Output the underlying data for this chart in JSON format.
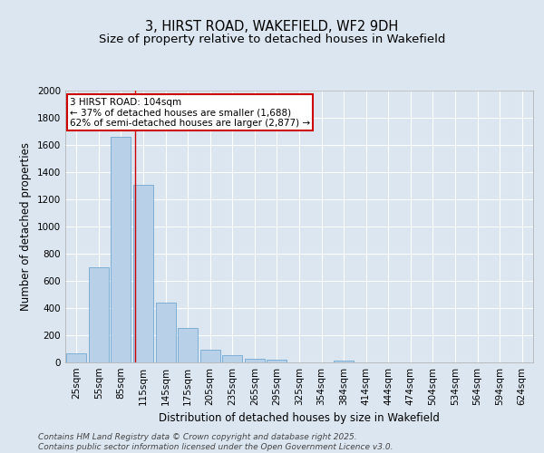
{
  "title": "3, HIRST ROAD, WAKEFIELD, WF2 9DH",
  "subtitle": "Size of property relative to detached houses in Wakefield",
  "xlabel": "Distribution of detached houses by size in Wakefield",
  "ylabel": "Number of detached properties",
  "bar_color": "#b8d0e8",
  "bar_edge_color": "#6fa8d0",
  "background_color": "#dce6f0",
  "grid_color": "#ffffff",
  "categories": [
    "25sqm",
    "55sqm",
    "85sqm",
    "115sqm",
    "145sqm",
    "175sqm",
    "205sqm",
    "235sqm",
    "265sqm",
    "295sqm",
    "325sqm",
    "354sqm",
    "384sqm",
    "414sqm",
    "444sqm",
    "474sqm",
    "504sqm",
    "534sqm",
    "564sqm",
    "594sqm",
    "624sqm"
  ],
  "values": [
    70,
    700,
    1660,
    1310,
    440,
    255,
    95,
    55,
    25,
    20,
    0,
    0,
    15,
    0,
    0,
    0,
    0,
    0,
    0,
    0,
    0
  ],
  "ylim": [
    0,
    2000
  ],
  "yticks": [
    0,
    200,
    400,
    600,
    800,
    1000,
    1200,
    1400,
    1600,
    1800,
    2000
  ],
  "annotation_title": "3 HIRST ROAD: 104sqm",
  "annotation_line1": "← 37% of detached houses are smaller (1,688)",
  "annotation_line2": "62% of semi-detached houses are larger (2,877) →",
  "annotation_box_color": "#ffffff",
  "annotation_box_edge": "#cc0000",
  "vline_color": "#cc0000",
  "vline_x": 2.63,
  "footer_line1": "Contains HM Land Registry data © Crown copyright and database right 2025.",
  "footer_line2": "Contains public sector information licensed under the Open Government Licence v3.0.",
  "title_fontsize": 10.5,
  "subtitle_fontsize": 9.5,
  "axis_label_fontsize": 8.5,
  "tick_fontsize": 7.5,
  "annotation_fontsize": 7.5,
  "footer_fontsize": 6.5
}
